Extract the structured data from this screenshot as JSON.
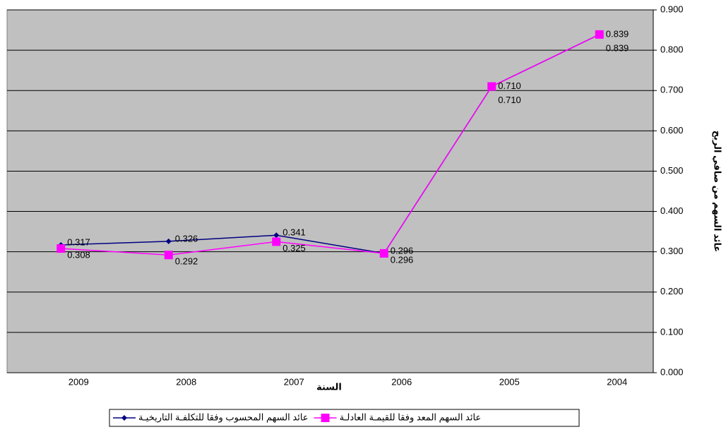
{
  "chart_data": {
    "type": "line",
    "categories": [
      "2009",
      "2008",
      "2007",
      "2006",
      "2005",
      "2004"
    ],
    "series": [
      {
        "name": "عائد السهم المحسوب وفقا للتكلفـة التاريخيـة",
        "color": "#000080",
        "marker": "diamond",
        "values": [
          0.317,
          0.326,
          0.341,
          0.296,
          0.71,
          0.839
        ],
        "value_labels": [
          "0.317",
          "0.326",
          "0.341",
          "0.296",
          "0.710",
          "0.839"
        ]
      },
      {
        "name": "عائد السهم المعد وفقا للقيمـة العادلـة",
        "color": "#ff00ff",
        "marker": "square",
        "values": [
          0.308,
          0.292,
          0.325,
          0.296,
          0.71,
          0.839
        ],
        "value_labels": [
          "0.308",
          "0.292",
          "0.325",
          "0.296",
          "0.710",
          "0.839"
        ]
      }
    ],
    "xlabel": "السنة",
    "ylabel": "عائد السهم من صافي الربح",
    "ylim": [
      0,
      0.9
    ],
    "yticks": [
      {
        "value": 0,
        "label": "0.000"
      },
      {
        "value": 0.1,
        "label": "0.100"
      },
      {
        "value": 0.2,
        "label": "0.200"
      },
      {
        "value": 0.3,
        "label": "0.300"
      },
      {
        "value": 0.4,
        "label": "0.400"
      },
      {
        "value": 0.5,
        "label": "0.500"
      },
      {
        "value": 0.6,
        "label": "0.600"
      },
      {
        "value": 0.7,
        "label": "0.700"
      },
      {
        "value": 0.8,
        "label": "0.800"
      },
      {
        "value": 0.9,
        "label": "0.900"
      }
    ],
    "grid": true,
    "axis_side": "right",
    "legend": "bottom"
  }
}
